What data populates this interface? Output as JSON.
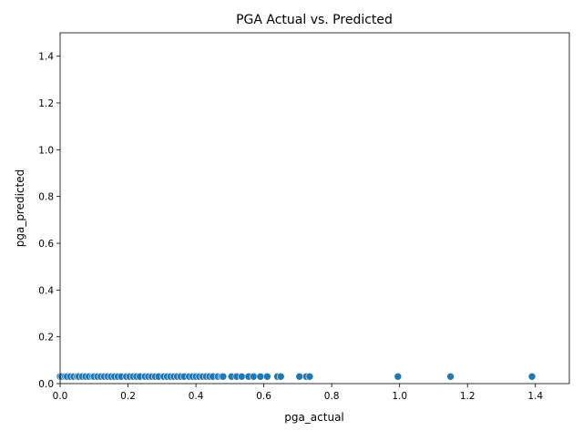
{
  "chart_data": {
    "type": "scatter",
    "title": "PGA Actual vs. Predicted",
    "xlabel": "pga_actual",
    "ylabel": "pga_predicted",
    "xlim": [
      0.0,
      1.5
    ],
    "ylim": [
      0.0,
      1.5
    ],
    "xticks": [
      "0.0",
      "0.2",
      "0.4",
      "0.6",
      "0.8",
      "1.0",
      "1.2",
      "1.4"
    ],
    "yticks": [
      "0.0",
      "0.2",
      "0.4",
      "0.6",
      "0.8",
      "1.0",
      "1.2",
      "1.4"
    ],
    "grid": false,
    "marker_color": "#1f77b4",
    "marker_edge_color": "#ffffff",
    "points": [
      {
        "x": 0.0,
        "y": 0.03
      },
      {
        "x": 0.005,
        "y": 0.03
      },
      {
        "x": 0.015,
        "y": 0.03
      },
      {
        "x": 0.02,
        "y": 0.03
      },
      {
        "x": 0.03,
        "y": 0.03
      },
      {
        "x": 0.04,
        "y": 0.03
      },
      {
        "x": 0.05,
        "y": 0.03
      },
      {
        "x": 0.055,
        "y": 0.03
      },
      {
        "x": 0.065,
        "y": 0.03
      },
      {
        "x": 0.075,
        "y": 0.03
      },
      {
        "x": 0.085,
        "y": 0.03
      },
      {
        "x": 0.095,
        "y": 0.03
      },
      {
        "x": 0.1,
        "y": 0.03
      },
      {
        "x": 0.11,
        "y": 0.03
      },
      {
        "x": 0.12,
        "y": 0.03
      },
      {
        "x": 0.13,
        "y": 0.03
      },
      {
        "x": 0.14,
        "y": 0.03
      },
      {
        "x": 0.15,
        "y": 0.03
      },
      {
        "x": 0.16,
        "y": 0.03
      },
      {
        "x": 0.17,
        "y": 0.03
      },
      {
        "x": 0.18,
        "y": 0.03
      },
      {
        "x": 0.195,
        "y": 0.03
      },
      {
        "x": 0.205,
        "y": 0.03
      },
      {
        "x": 0.215,
        "y": 0.03
      },
      {
        "x": 0.225,
        "y": 0.03
      },
      {
        "x": 0.235,
        "y": 0.03
      },
      {
        "x": 0.25,
        "y": 0.03
      },
      {
        "x": 0.26,
        "y": 0.03
      },
      {
        "x": 0.27,
        "y": 0.03
      },
      {
        "x": 0.28,
        "y": 0.03
      },
      {
        "x": 0.29,
        "y": 0.03
      },
      {
        "x": 0.305,
        "y": 0.03
      },
      {
        "x": 0.315,
        "y": 0.03
      },
      {
        "x": 0.325,
        "y": 0.03
      },
      {
        "x": 0.335,
        "y": 0.03
      },
      {
        "x": 0.345,
        "y": 0.03
      },
      {
        "x": 0.355,
        "y": 0.03
      },
      {
        "x": 0.365,
        "y": 0.03
      },
      {
        "x": 0.38,
        "y": 0.03
      },
      {
        "x": 0.39,
        "y": 0.03
      },
      {
        "x": 0.4,
        "y": 0.03
      },
      {
        "x": 0.41,
        "y": 0.03
      },
      {
        "x": 0.42,
        "y": 0.03
      },
      {
        "x": 0.43,
        "y": 0.03
      },
      {
        "x": 0.44,
        "y": 0.03
      },
      {
        "x": 0.45,
        "y": 0.03
      },
      {
        "x": 0.465,
        "y": 0.03
      },
      {
        "x": 0.475,
        "y": 0.03
      },
      {
        "x": 0.48,
        "y": 0.03
      },
      {
        "x": 0.505,
        "y": 0.03
      },
      {
        "x": 0.52,
        "y": 0.03
      },
      {
        "x": 0.535,
        "y": 0.03
      },
      {
        "x": 0.555,
        "y": 0.03
      },
      {
        "x": 0.57,
        "y": 0.03
      },
      {
        "x": 0.59,
        "y": 0.03
      },
      {
        "x": 0.61,
        "y": 0.03
      },
      {
        "x": 0.64,
        "y": 0.03
      },
      {
        "x": 0.65,
        "y": 0.03
      },
      {
        "x": 0.705,
        "y": 0.03
      },
      {
        "x": 0.725,
        "y": 0.03
      },
      {
        "x": 0.735,
        "y": 0.03
      },
      {
        "x": 0.995,
        "y": 0.03
      },
      {
        "x": 1.15,
        "y": 0.03
      },
      {
        "x": 1.39,
        "y": 0.03
      }
    ]
  }
}
